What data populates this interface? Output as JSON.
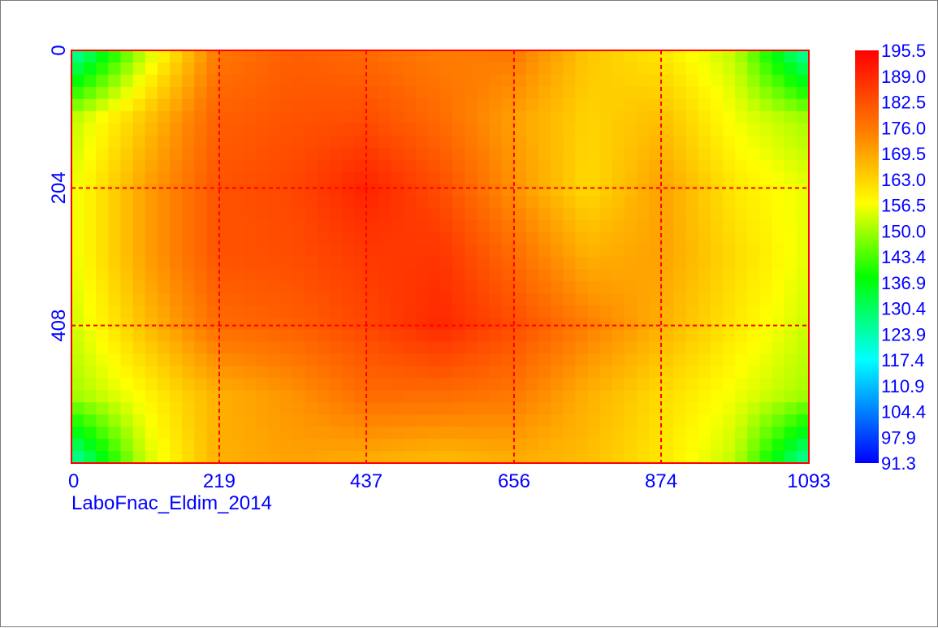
{
  "chart_data": {
    "type": "heatmap",
    "caption": "LaboFnac_Eldim_2014",
    "x_ticks": [
      "0",
      "219",
      "437",
      "656",
      "874",
      "1093"
    ],
    "y_ticks": [
      "0",
      "204",
      "408"
    ],
    "x_range": [
      0,
      1093
    ],
    "y_range": [
      0,
      612
    ],
    "grid": true,
    "grid_color": "#ff0000",
    "axis_label_color": "#0000ff",
    "colorbar": {
      "placement": "right",
      "labels": [
        "195.5",
        "189.0",
        "182.5",
        "176.0",
        "169.5",
        "163.0",
        "156.5",
        "150.0",
        "143.4",
        "136.9",
        "130.4",
        "123.9",
        "117.4",
        "110.9",
        "104.4",
        "97.9",
        "91.3"
      ],
      "min": 91.3,
      "max": 195.5
    },
    "value_grid": {
      "x": [
        0,
        109,
        219,
        328,
        437,
        547,
        656,
        765,
        874,
        984,
        1093
      ],
      "y": [
        0,
        102,
        204,
        306,
        408,
        510,
        612
      ],
      "values": [
        [
          123,
          152,
          176,
          180,
          178,
          175,
          176,
          165,
          160,
          152,
          123
        ],
        [
          152,
          165,
          180,
          182,
          183,
          178,
          170,
          163,
          166,
          156,
          150
        ],
        [
          155,
          170,
          182,
          184,
          190,
          183,
          172,
          162,
          170,
          160,
          155
        ],
        [
          155,
          170,
          182,
          183,
          186,
          187,
          178,
          168,
          170,
          162,
          155
        ],
        [
          153,
          166,
          178,
          180,
          184,
          189,
          183,
          175,
          168,
          160,
          153
        ],
        [
          150,
          158,
          168,
          172,
          178,
          178,
          176,
          168,
          162,
          156,
          150
        ],
        [
          123,
          153,
          168,
          170,
          168,
          166,
          168,
          166,
          160,
          152,
          123
        ]
      ]
    }
  }
}
